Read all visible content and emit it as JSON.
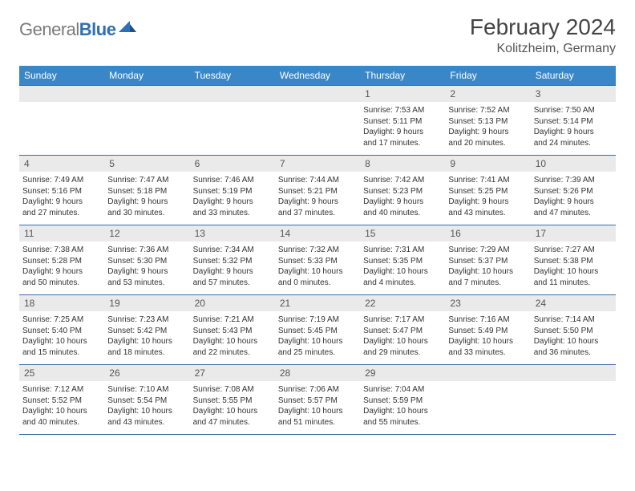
{
  "logo": {
    "part1": "General",
    "part2": "Blue"
  },
  "title": "February 2024",
  "location": "Kolitzheim, Germany",
  "colors": {
    "header_bg": "#3a87c8",
    "header_text": "#ffffff",
    "daynum_bg": "#eaeaea",
    "rule": "#3a6ea5",
    "logo_gray": "#7a7a7a",
    "logo_blue": "#2e6fb5"
  },
  "day_names": [
    "Sunday",
    "Monday",
    "Tuesday",
    "Wednesday",
    "Thursday",
    "Friday",
    "Saturday"
  ],
  "weeks": [
    [
      null,
      null,
      null,
      null,
      {
        "n": "1",
        "sr": "Sunrise: 7:53 AM",
        "ss": "Sunset: 5:11 PM",
        "d1": "Daylight: 9 hours",
        "d2": "and 17 minutes."
      },
      {
        "n": "2",
        "sr": "Sunrise: 7:52 AM",
        "ss": "Sunset: 5:13 PM",
        "d1": "Daylight: 9 hours",
        "d2": "and 20 minutes."
      },
      {
        "n": "3",
        "sr": "Sunrise: 7:50 AM",
        "ss": "Sunset: 5:14 PM",
        "d1": "Daylight: 9 hours",
        "d2": "and 24 minutes."
      }
    ],
    [
      {
        "n": "4",
        "sr": "Sunrise: 7:49 AM",
        "ss": "Sunset: 5:16 PM",
        "d1": "Daylight: 9 hours",
        "d2": "and 27 minutes."
      },
      {
        "n": "5",
        "sr": "Sunrise: 7:47 AM",
        "ss": "Sunset: 5:18 PM",
        "d1": "Daylight: 9 hours",
        "d2": "and 30 minutes."
      },
      {
        "n": "6",
        "sr": "Sunrise: 7:46 AM",
        "ss": "Sunset: 5:19 PM",
        "d1": "Daylight: 9 hours",
        "d2": "and 33 minutes."
      },
      {
        "n": "7",
        "sr": "Sunrise: 7:44 AM",
        "ss": "Sunset: 5:21 PM",
        "d1": "Daylight: 9 hours",
        "d2": "and 37 minutes."
      },
      {
        "n": "8",
        "sr": "Sunrise: 7:42 AM",
        "ss": "Sunset: 5:23 PM",
        "d1": "Daylight: 9 hours",
        "d2": "and 40 minutes."
      },
      {
        "n": "9",
        "sr": "Sunrise: 7:41 AM",
        "ss": "Sunset: 5:25 PM",
        "d1": "Daylight: 9 hours",
        "d2": "and 43 minutes."
      },
      {
        "n": "10",
        "sr": "Sunrise: 7:39 AM",
        "ss": "Sunset: 5:26 PM",
        "d1": "Daylight: 9 hours",
        "d2": "and 47 minutes."
      }
    ],
    [
      {
        "n": "11",
        "sr": "Sunrise: 7:38 AM",
        "ss": "Sunset: 5:28 PM",
        "d1": "Daylight: 9 hours",
        "d2": "and 50 minutes."
      },
      {
        "n": "12",
        "sr": "Sunrise: 7:36 AM",
        "ss": "Sunset: 5:30 PM",
        "d1": "Daylight: 9 hours",
        "d2": "and 53 minutes."
      },
      {
        "n": "13",
        "sr": "Sunrise: 7:34 AM",
        "ss": "Sunset: 5:32 PM",
        "d1": "Daylight: 9 hours",
        "d2": "and 57 minutes."
      },
      {
        "n": "14",
        "sr": "Sunrise: 7:32 AM",
        "ss": "Sunset: 5:33 PM",
        "d1": "Daylight: 10 hours",
        "d2": "and 0 minutes."
      },
      {
        "n": "15",
        "sr": "Sunrise: 7:31 AM",
        "ss": "Sunset: 5:35 PM",
        "d1": "Daylight: 10 hours",
        "d2": "and 4 minutes."
      },
      {
        "n": "16",
        "sr": "Sunrise: 7:29 AM",
        "ss": "Sunset: 5:37 PM",
        "d1": "Daylight: 10 hours",
        "d2": "and 7 minutes."
      },
      {
        "n": "17",
        "sr": "Sunrise: 7:27 AM",
        "ss": "Sunset: 5:38 PM",
        "d1": "Daylight: 10 hours",
        "d2": "and 11 minutes."
      }
    ],
    [
      {
        "n": "18",
        "sr": "Sunrise: 7:25 AM",
        "ss": "Sunset: 5:40 PM",
        "d1": "Daylight: 10 hours",
        "d2": "and 15 minutes."
      },
      {
        "n": "19",
        "sr": "Sunrise: 7:23 AM",
        "ss": "Sunset: 5:42 PM",
        "d1": "Daylight: 10 hours",
        "d2": "and 18 minutes."
      },
      {
        "n": "20",
        "sr": "Sunrise: 7:21 AM",
        "ss": "Sunset: 5:43 PM",
        "d1": "Daylight: 10 hours",
        "d2": "and 22 minutes."
      },
      {
        "n": "21",
        "sr": "Sunrise: 7:19 AM",
        "ss": "Sunset: 5:45 PM",
        "d1": "Daylight: 10 hours",
        "d2": "and 25 minutes."
      },
      {
        "n": "22",
        "sr": "Sunrise: 7:17 AM",
        "ss": "Sunset: 5:47 PM",
        "d1": "Daylight: 10 hours",
        "d2": "and 29 minutes."
      },
      {
        "n": "23",
        "sr": "Sunrise: 7:16 AM",
        "ss": "Sunset: 5:49 PM",
        "d1": "Daylight: 10 hours",
        "d2": "and 33 minutes."
      },
      {
        "n": "24",
        "sr": "Sunrise: 7:14 AM",
        "ss": "Sunset: 5:50 PM",
        "d1": "Daylight: 10 hours",
        "d2": "and 36 minutes."
      }
    ],
    [
      {
        "n": "25",
        "sr": "Sunrise: 7:12 AM",
        "ss": "Sunset: 5:52 PM",
        "d1": "Daylight: 10 hours",
        "d2": "and 40 minutes."
      },
      {
        "n": "26",
        "sr": "Sunrise: 7:10 AM",
        "ss": "Sunset: 5:54 PM",
        "d1": "Daylight: 10 hours",
        "d2": "and 43 minutes."
      },
      {
        "n": "27",
        "sr": "Sunrise: 7:08 AM",
        "ss": "Sunset: 5:55 PM",
        "d1": "Daylight: 10 hours",
        "d2": "and 47 minutes."
      },
      {
        "n": "28",
        "sr": "Sunrise: 7:06 AM",
        "ss": "Sunset: 5:57 PM",
        "d1": "Daylight: 10 hours",
        "d2": "and 51 minutes."
      },
      {
        "n": "29",
        "sr": "Sunrise: 7:04 AM",
        "ss": "Sunset: 5:59 PM",
        "d1": "Daylight: 10 hours",
        "d2": "and 55 minutes."
      },
      null,
      null
    ]
  ]
}
